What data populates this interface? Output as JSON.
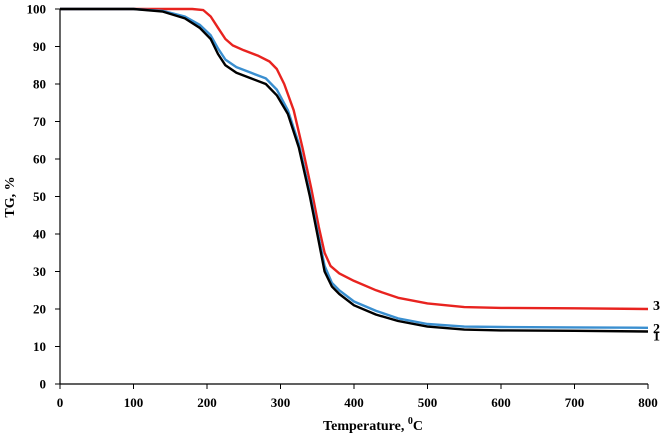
{
  "chart_data": {
    "type": "line",
    "title": "",
    "xlabel": "Temperature, ",
    "xlabel_sup": "0",
    "xlabel_unit": "C",
    "ylabel": "TG, %",
    "xlim": [
      0,
      800
    ],
    "ylim": [
      0,
      100
    ],
    "x_ticks": [
      0,
      100,
      200,
      300,
      400,
      500,
      600,
      700,
      800
    ],
    "y_ticks": [
      0,
      10,
      20,
      30,
      40,
      50,
      60,
      70,
      80,
      90,
      100
    ],
    "grid": false,
    "series": [
      {
        "name": "1",
        "color": "#000000",
        "points": [
          [
            0,
            100
          ],
          [
            100,
            100
          ],
          [
            140,
            99.3
          ],
          [
            170,
            97.5
          ],
          [
            190,
            95
          ],
          [
            205,
            92
          ],
          [
            215,
            88
          ],
          [
            225,
            85
          ],
          [
            240,
            83
          ],
          [
            260,
            81.5
          ],
          [
            280,
            80
          ],
          [
            295,
            77
          ],
          [
            310,
            72
          ],
          [
            325,
            63
          ],
          [
            340,
            50
          ],
          [
            350,
            40
          ],
          [
            360,
            30
          ],
          [
            370,
            26
          ],
          [
            380,
            24
          ],
          [
            400,
            21
          ],
          [
            430,
            18.5
          ],
          [
            460,
            16.8
          ],
          [
            500,
            15.3
          ],
          [
            550,
            14.5
          ],
          [
            600,
            14.3
          ],
          [
            700,
            14.2
          ],
          [
            800,
            14
          ]
        ]
      },
      {
        "name": "2",
        "color": "#3a8fd0",
        "points": [
          [
            0,
            100
          ],
          [
            100,
            100
          ],
          [
            140,
            99.5
          ],
          [
            170,
            98
          ],
          [
            190,
            95.8
          ],
          [
            205,
            93
          ],
          [
            215,
            89.5
          ],
          [
            225,
            86.5
          ],
          [
            240,
            84.5
          ],
          [
            260,
            83
          ],
          [
            280,
            81.5
          ],
          [
            295,
            78.5
          ],
          [
            310,
            73
          ],
          [
            325,
            64
          ],
          [
            340,
            51
          ],
          [
            350,
            41
          ],
          [
            360,
            31.5
          ],
          [
            370,
            27
          ],
          [
            380,
            25
          ],
          [
            400,
            22
          ],
          [
            430,
            19.5
          ],
          [
            460,
            17.5
          ],
          [
            500,
            16
          ],
          [
            550,
            15.3
          ],
          [
            600,
            15.2
          ],
          [
            700,
            15.1
          ],
          [
            800,
            15
          ]
        ]
      },
      {
        "name": "3",
        "color": "#e8231f",
        "points": [
          [
            0,
            100
          ],
          [
            100,
            100
          ],
          [
            180,
            100
          ],
          [
            195,
            99.7
          ],
          [
            205,
            98
          ],
          [
            215,
            95
          ],
          [
            225,
            92
          ],
          [
            235,
            90.3
          ],
          [
            250,
            89
          ],
          [
            270,
            87.5
          ],
          [
            285,
            86
          ],
          [
            295,
            84
          ],
          [
            305,
            80
          ],
          [
            318,
            73
          ],
          [
            330,
            63
          ],
          [
            342,
            52
          ],
          [
            352,
            42
          ],
          [
            360,
            35
          ],
          [
            368,
            31.5
          ],
          [
            380,
            29.5
          ],
          [
            400,
            27.5
          ],
          [
            430,
            25
          ],
          [
            460,
            23
          ],
          [
            500,
            21.5
          ],
          [
            550,
            20.5
          ],
          [
            600,
            20.3
          ],
          [
            700,
            20.2
          ],
          [
            800,
            20
          ]
        ]
      }
    ]
  }
}
